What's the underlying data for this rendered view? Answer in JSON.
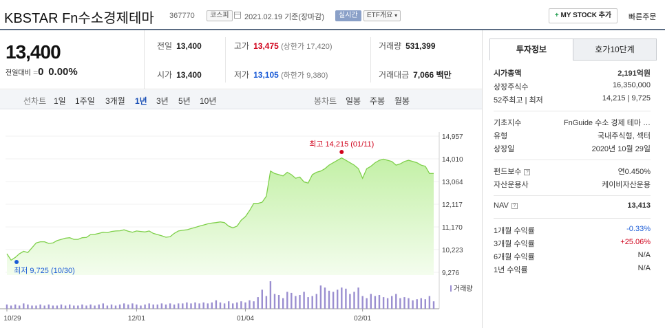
{
  "header": {
    "title": "KBSTAR Fn수소경제테마",
    "code": "367770",
    "market_badge": "코스피",
    "date": "2021.02.19 기준(장마감)",
    "realtime_badge": "실시간",
    "etf_badge": "ETF개요",
    "mystock_plus": "+",
    "mystock_label": "MY STOCK 추가",
    "quick_order": "빠른주문"
  },
  "price": {
    "current": "13,400",
    "change_label": "전일대비",
    "change_symbol": "=",
    "change_value": "0",
    "change_pct": "0.00%"
  },
  "stats": {
    "prev_label": "전일",
    "prev": "13,400",
    "high_label": "고가",
    "high": "13,475",
    "upper_limit": "(상한가 17,420)",
    "volume_label": "거래량",
    "volume": "531,399",
    "open_label": "시가",
    "open": "13,400",
    "low_label": "저가",
    "low": "13,105",
    "lower_limit": "(하한가 9,380)",
    "amount_label": "거래대금",
    "amount": "7,066 백만"
  },
  "periods": {
    "line_label": "선차트",
    "items": [
      "1일",
      "1주일",
      "3개월",
      "1년",
      "3년",
      "5년",
      "10년"
    ],
    "selected": "1년",
    "candle_label": "봉차트",
    "candle_items": [
      "일봉",
      "주봉",
      "월봉"
    ]
  },
  "chart_data": {
    "type": "area",
    "y_ticks": [
      "14,957",
      "14,010",
      "13,064",
      "12,117",
      "11,170",
      "10,223",
      "9,276"
    ],
    "ylim": [
      9276,
      14957
    ],
    "x_ticks": [
      "10/29",
      "12/01",
      "01/04",
      "02/01"
    ],
    "high_annotation": "최고 14,215 (01/11)",
    "low_annotation": "최저 9,725 (10/30)",
    "volume_label": "거래량",
    "colors": {
      "line": "#7fd04b",
      "fill_top": "#c3f0a6",
      "fill_bottom": "#f4fdee",
      "volume": "#9a8ed0",
      "high": "#d0021b",
      "low": "#1a5bd6"
    },
    "prices": [
      10050,
      9780,
      9900,
      10050,
      10150,
      10100,
      10300,
      10500,
      10550,
      10550,
      10480,
      10500,
      10600,
      10650,
      10700,
      10720,
      10650,
      10650,
      10720,
      10730,
      10850,
      10860,
      10900,
      10950,
      10930,
      10980,
      11000,
      11010,
      11050,
      10990,
      10950,
      11000,
      10980,
      10960,
      11000,
      10900,
      10850,
      10800,
      10740,
      10760,
      10900,
      11000,
      11030,
      11050,
      11100,
      11150,
      11200,
      11250,
      11300,
      11330,
      11350,
      11380,
      11350,
      11200,
      11130,
      11200,
      11450,
      11600,
      11850,
      12150,
      12150,
      12200,
      12450,
      13500,
      13400,
      13350,
      13300,
      13450,
      13350,
      13200,
      13250,
      13050,
      13000,
      13350,
      13450,
      13500,
      13600,
      13750,
      13850,
      13950,
      14050,
      13950,
      13850,
      13750,
      13600,
      13200,
      13600,
      13700,
      13850,
      13950,
      14000,
      13950,
      13900,
      13750,
      13800,
      13900,
      13950,
      13900,
      13850,
      13750,
      13700,
      13400,
      13400
    ],
    "volumes": [
      4,
      3,
      4,
      3,
      5,
      4,
      3,
      3,
      4,
      3,
      4,
      3,
      3,
      4,
      3,
      4,
      3,
      3,
      4,
      3,
      4,
      3,
      4,
      5,
      3,
      4,
      3,
      4,
      5,
      4,
      5,
      4,
      3,
      4,
      5,
      4,
      4,
      5,
      4,
      5,
      4,
      5,
      5,
      6,
      5,
      6,
      5,
      6,
      5,
      6,
      8,
      6,
      5,
      7,
      5,
      6,
      7,
      6,
      8,
      7,
      11,
      18,
      12,
      26,
      14,
      13,
      10,
      16,
      15,
      12,
      13,
      16,
      11,
      12,
      14,
      22,
      20,
      17,
      16,
      18,
      20,
      19,
      14,
      16,
      20,
      12,
      10,
      14,
      12,
      13,
      11,
      10,
      12,
      14,
      10,
      11,
      10,
      8,
      9,
      10,
      9,
      12,
      7
    ],
    "high_index": 80,
    "low_index": 1
  },
  "right": {
    "tab_info": "투자정보",
    "tab_hoga": "호가10단계",
    "rows1": [
      {
        "k": "시가총액",
        "v": "2,191억원"
      },
      {
        "k": "상장주식수",
        "v": "16,350,000"
      },
      {
        "k": "52주최고 | 최저",
        "v": "14,215 | 9,725"
      }
    ],
    "rows2": [
      {
        "k": "기초지수",
        "v": "FnGuide 수소 경제 테마 …"
      },
      {
        "k": "유형",
        "v": "국내주식형, 섹터"
      },
      {
        "k": "상장일",
        "v": "2020년 10월 29일"
      }
    ],
    "fee_label": "펀드보수",
    "fee_value": "연0.450%",
    "company_label": "자산운용사",
    "company_value": "케이비자산운용",
    "nav_label": "NAV",
    "nav_value": "13,413",
    "returns": [
      {
        "k": "1개월 수익률",
        "v": "-0.33%"
      },
      {
        "k": "3개월 수익률",
        "v": "+25.06%"
      },
      {
        "k": "6개월 수익률",
        "v": "N/A"
      },
      {
        "k": "1년 수익률",
        "v": "N/A"
      }
    ]
  }
}
